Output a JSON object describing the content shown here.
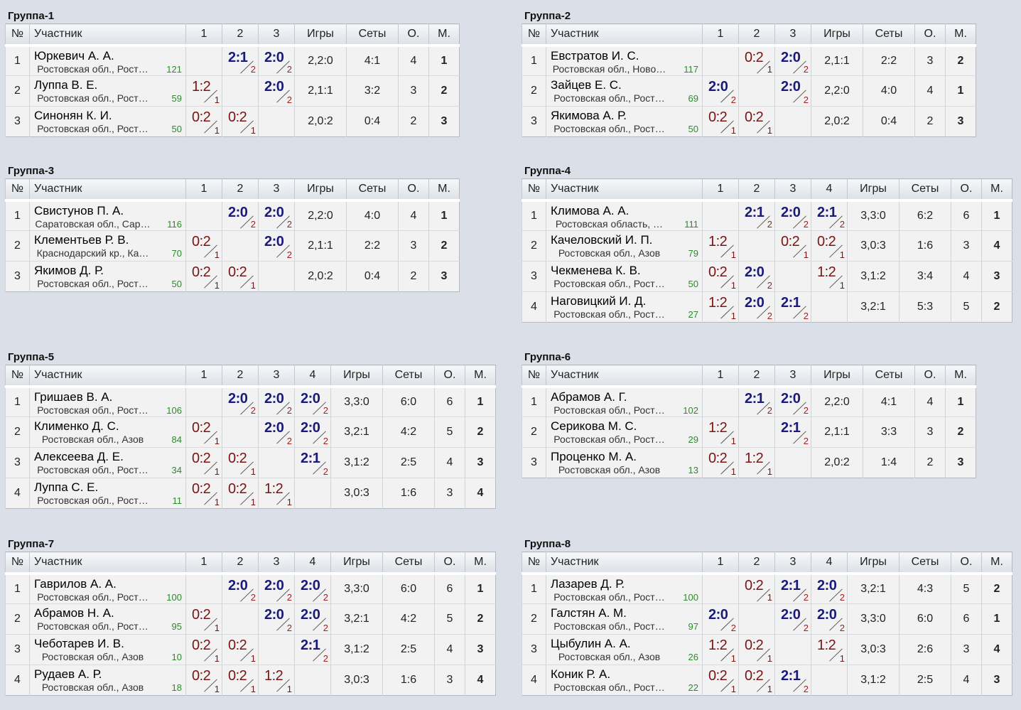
{
  "header_labels": {
    "num": "№",
    "participant": "Участник",
    "games": "Игры",
    "sets": "Сеты",
    "points": "О.",
    "place": "М."
  },
  "colors": {
    "background": "#dbe0e8",
    "win": "#1a1a7a",
    "loss": "#7a1414",
    "rating": "#2a8a2a",
    "place": "#1a237e"
  },
  "groups": [
    {
      "title": "Группа-1",
      "cols": [
        "1",
        "2",
        "3"
      ],
      "rows": [
        {
          "n": "1",
          "name": "Юркевич А. А.",
          "region": "Ростовская обл., Рост…",
          "rating": "121",
          "cells": [
            null,
            {
              "s": "2:1",
              "t": "2",
              "w": true
            },
            {
              "s": "2:0",
              "t": "2",
              "w": true
            }
          ],
          "games": "2,2:0",
          "sets": "4:1",
          "points": "4",
          "place": "1"
        },
        {
          "n": "2",
          "name": "Луппа В. Е.",
          "region": "Ростовская обл., Рост…",
          "rating": "59",
          "cells": [
            {
              "s": "1:2",
              "t": "1",
              "w": false
            },
            null,
            {
              "s": "2:0",
              "t": "2",
              "w": true
            }
          ],
          "games": "2,1:1",
          "sets": "3:2",
          "points": "3",
          "place": "2"
        },
        {
          "n": "3",
          "name": "Синонян К. И.",
          "region": "Ростовская обл., Рост…",
          "rating": "50",
          "cells": [
            {
              "s": "0:2",
              "t": "1",
              "w": false
            },
            {
              "s": "0:2",
              "t": "1",
              "w": false
            },
            null
          ],
          "games": "2,0:2",
          "sets": "0:4",
          "points": "2",
          "place": "3"
        }
      ]
    },
    {
      "title": "Группа-2",
      "cols": [
        "1",
        "2",
        "3"
      ],
      "rows": [
        {
          "n": "1",
          "name": "Евстратов И. С.",
          "region": "Ростовская обл., Ново…",
          "rating": "117",
          "cells": [
            null,
            {
              "s": "0:2",
              "t": "1",
              "w": false
            },
            {
              "s": "2:0",
              "t": "2",
              "w": true
            }
          ],
          "games": "2,1:1",
          "sets": "2:2",
          "points": "3",
          "place": "2"
        },
        {
          "n": "2",
          "name": "Зайцев Е. С.",
          "region": "Ростовская обл., Рост…",
          "rating": "69",
          "cells": [
            {
              "s": "2:0",
              "t": "2",
              "w": true
            },
            null,
            {
              "s": "2:0",
              "t": "2",
              "w": true
            }
          ],
          "games": "2,2:0",
          "sets": "4:0",
          "points": "4",
          "place": "1"
        },
        {
          "n": "3",
          "name": "Якимова А. Р.",
          "region": "Ростовская обл., Рост…",
          "rating": "50",
          "cells": [
            {
              "s": "0:2",
              "t": "1",
              "w": false
            },
            {
              "s": "0:2",
              "t": "1",
              "w": false
            },
            null
          ],
          "games": "2,0:2",
          "sets": "0:4",
          "points": "2",
          "place": "3"
        }
      ]
    },
    {
      "title": "Группа-3",
      "cols": [
        "1",
        "2",
        "3"
      ],
      "rows": [
        {
          "n": "1",
          "name": "Свистунов П. А.",
          "region": "Саратовская обл., Сар…",
          "rating": "116",
          "cells": [
            null,
            {
              "s": "2:0",
              "t": "2",
              "w": true
            },
            {
              "s": "2:0",
              "t": "2",
              "w": true
            }
          ],
          "games": "2,2:0",
          "sets": "4:0",
          "points": "4",
          "place": "1"
        },
        {
          "n": "2",
          "name": "Клементьев Р. В.",
          "region": "Краснодарский кр., Ка…",
          "rating": "70",
          "cells": [
            {
              "s": "0:2",
              "t": "1",
              "w": false
            },
            null,
            {
              "s": "2:0",
              "t": "2",
              "w": true
            }
          ],
          "games": "2,1:1",
          "sets": "2:2",
          "points": "3",
          "place": "2"
        },
        {
          "n": "3",
          "name": "Якимов Д. Р.",
          "region": "Ростовская обл., Рост…",
          "rating": "50",
          "cells": [
            {
              "s": "0:2",
              "t": "1",
              "w": false
            },
            {
              "s": "0:2",
              "t": "1",
              "w": false
            },
            null
          ],
          "games": "2,0:2",
          "sets": "0:4",
          "points": "2",
          "place": "3"
        }
      ]
    },
    {
      "title": "Группа-4",
      "cols": [
        "1",
        "2",
        "3",
        "4"
      ],
      "rows": [
        {
          "n": "1",
          "name": "Климова А. А.",
          "region": "Ростовская область, …",
          "rating": "111",
          "cells": [
            null,
            {
              "s": "2:1",
              "t": "2",
              "w": true
            },
            {
              "s": "2:0",
              "t": "2",
              "w": true
            },
            {
              "s": "2:1",
              "t": "2",
              "w": true
            }
          ],
          "games": "3,3:0",
          "sets": "6:2",
          "points": "6",
          "place": "1"
        },
        {
          "n": "2",
          "name": "Качеловский И. П.",
          "region": "Ростовская обл., Азов",
          "rating": "79",
          "cells": [
            {
              "s": "1:2",
              "t": "1",
              "w": false
            },
            null,
            {
              "s": "0:2",
              "t": "1",
              "w": false
            },
            {
              "s": "0:2",
              "t": "1",
              "w": false
            }
          ],
          "games": "3,0:3",
          "sets": "1:6",
          "points": "3",
          "place": "4"
        },
        {
          "n": "3",
          "name": "Чекменева К. В.",
          "region": "Ростовская обл., Рост…",
          "rating": "50",
          "cells": [
            {
              "s": "0:2",
              "t": "1",
              "w": false
            },
            {
              "s": "2:0",
              "t": "2",
              "w": true
            },
            null,
            {
              "s": "1:2",
              "t": "1",
              "w": false
            }
          ],
          "games": "3,1:2",
          "sets": "3:4",
          "points": "4",
          "place": "3"
        },
        {
          "n": "4",
          "name": "Наговицкий И. Д.",
          "region": "Ростовская обл., Рост…",
          "rating": "27",
          "cells": [
            {
              "s": "1:2",
              "t": "1",
              "w": false
            },
            {
              "s": "2:0",
              "t": "2",
              "w": true
            },
            {
              "s": "2:1",
              "t": "2",
              "w": true
            },
            null
          ],
          "games": "3,2:1",
          "sets": "5:3",
          "points": "5",
          "place": "2"
        }
      ]
    },
    {
      "title": "Группа-5",
      "cols": [
        "1",
        "2",
        "3",
        "4"
      ],
      "rows": [
        {
          "n": "1",
          "name": "Гришаев В. А.",
          "region": "Ростовская обл., Рост…",
          "rating": "106",
          "cells": [
            null,
            {
              "s": "2:0",
              "t": "2",
              "w": true
            },
            {
              "s": "2:0",
              "t": "2",
              "w": true
            },
            {
              "s": "2:0",
              "t": "2",
              "w": true
            }
          ],
          "games": "3,3:0",
          "sets": "6:0",
          "points": "6",
          "place": "1"
        },
        {
          "n": "2",
          "name": "Клименко Д. С.",
          "region": "Ростовская обл., Азов",
          "rating": "84",
          "cells": [
            {
              "s": "0:2",
              "t": "1",
              "w": false
            },
            null,
            {
              "s": "2:0",
              "t": "2",
              "w": true
            },
            {
              "s": "2:0",
              "t": "2",
              "w": true
            }
          ],
          "games": "3,2:1",
          "sets": "4:2",
          "points": "5",
          "place": "2"
        },
        {
          "n": "3",
          "name": "Алексеева Д. Е.",
          "region": "Ростовская обл., Рост…",
          "rating": "34",
          "cells": [
            {
              "s": "0:2",
              "t": "1",
              "w": false
            },
            {
              "s": "0:2",
              "t": "1",
              "w": false
            },
            null,
            {
              "s": "2:1",
              "t": "2",
              "w": true
            }
          ],
          "games": "3,1:2",
          "sets": "2:5",
          "points": "4",
          "place": "3"
        },
        {
          "n": "4",
          "name": "Луппа С. Е.",
          "region": "Ростовская обл., Рост…",
          "rating": "11",
          "cells": [
            {
              "s": "0:2",
              "t": "1",
              "w": false
            },
            {
              "s": "0:2",
              "t": "1",
              "w": false
            },
            {
              "s": "1:2",
              "t": "1",
              "w": false
            },
            null
          ],
          "games": "3,0:3",
          "sets": "1:6",
          "points": "3",
          "place": "4"
        }
      ]
    },
    {
      "title": "Группа-6",
      "cols": [
        "1",
        "2",
        "3"
      ],
      "rows": [
        {
          "n": "1",
          "name": "Абрамов А. Г.",
          "region": "Ростовская обл., Рост…",
          "rating": "102",
          "cells": [
            null,
            {
              "s": "2:1",
              "t": "2",
              "w": true
            },
            {
              "s": "2:0",
              "t": "2",
              "w": true
            }
          ],
          "games": "2,2:0",
          "sets": "4:1",
          "points": "4",
          "place": "1"
        },
        {
          "n": "2",
          "name": "Серикова М. С.",
          "region": "Ростовская обл., Рост…",
          "rating": "29",
          "cells": [
            {
              "s": "1:2",
              "t": "1",
              "w": false
            },
            null,
            {
              "s": "2:1",
              "t": "2",
              "w": true
            }
          ],
          "games": "2,1:1",
          "sets": "3:3",
          "points": "3",
          "place": "2"
        },
        {
          "n": "3",
          "name": "Проценко М. А.",
          "region": "Ростовская обл., Азов",
          "rating": "13",
          "cells": [
            {
              "s": "0:2",
              "t": "1",
              "w": false
            },
            {
              "s": "1:2",
              "t": "1",
              "w": false
            },
            null
          ],
          "games": "2,0:2",
          "sets": "1:4",
          "points": "2",
          "place": "3"
        }
      ]
    },
    {
      "title": "Группа-7",
      "cols": [
        "1",
        "2",
        "3",
        "4"
      ],
      "rows": [
        {
          "n": "1",
          "name": "Гаврилов А. А.",
          "region": "Ростовская обл., Рост…",
          "rating": "100",
          "cells": [
            null,
            {
              "s": "2:0",
              "t": "2",
              "w": true
            },
            {
              "s": "2:0",
              "t": "2",
              "w": true
            },
            {
              "s": "2:0",
              "t": "2",
              "w": true
            }
          ],
          "games": "3,3:0",
          "sets": "6:0",
          "points": "6",
          "place": "1"
        },
        {
          "n": "2",
          "name": "Абрамов Н. А.",
          "region": "Ростовская обл., Рост…",
          "rating": "95",
          "cells": [
            {
              "s": "0:2",
              "t": "1",
              "w": false
            },
            null,
            {
              "s": "2:0",
              "t": "2",
              "w": true
            },
            {
              "s": "2:0",
              "t": "2",
              "w": true
            }
          ],
          "games": "3,2:1",
          "sets": "4:2",
          "points": "5",
          "place": "2"
        },
        {
          "n": "3",
          "name": "Чеботарев И. В.",
          "region": "Ростовская обл., Азов",
          "rating": "10",
          "cells": [
            {
              "s": "0:2",
              "t": "1",
              "w": false
            },
            {
              "s": "0:2",
              "t": "1",
              "w": false
            },
            null,
            {
              "s": "2:1",
              "t": "2",
              "w": true
            }
          ],
          "games": "3,1:2",
          "sets": "2:5",
          "points": "4",
          "place": "3"
        },
        {
          "n": "4",
          "name": "Рудаев А. Р.",
          "region": "Ростовская обл., Азов",
          "rating": "18",
          "cells": [
            {
              "s": "0:2",
              "t": "1",
              "w": false
            },
            {
              "s": "0:2",
              "t": "1",
              "w": false
            },
            {
              "s": "1:2",
              "t": "1",
              "w": false
            },
            null
          ],
          "games": "3,0:3",
          "sets": "1:6",
          "points": "3",
          "place": "4"
        }
      ]
    },
    {
      "title": "Группа-8",
      "cols": [
        "1",
        "2",
        "3",
        "4"
      ],
      "rows": [
        {
          "n": "1",
          "name": "Лазарев Д. Р.",
          "region": "Ростовская обл., Рост…",
          "rating": "100",
          "cells": [
            null,
            {
              "s": "0:2",
              "t": "1",
              "w": false
            },
            {
              "s": "2:1",
              "t": "2",
              "w": true
            },
            {
              "s": "2:0",
              "t": "2",
              "w": true
            }
          ],
          "games": "3,2:1",
          "sets": "4:3",
          "points": "5",
          "place": "2"
        },
        {
          "n": "2",
          "name": "Галстян А. М.",
          "region": "Ростовская обл., Рост…",
          "rating": "97",
          "cells": [
            {
              "s": "2:0",
              "t": "2",
              "w": true
            },
            null,
            {
              "s": "2:0",
              "t": "2",
              "w": true
            },
            {
              "s": "2:0",
              "t": "2",
              "w": true
            }
          ],
          "games": "3,3:0",
          "sets": "6:0",
          "points": "6",
          "place": "1"
        },
        {
          "n": "3",
          "name": "Цыбулин А. А.",
          "region": "Ростовская обл., Азов",
          "rating": "26",
          "cells": [
            {
              "s": "1:2",
              "t": "1",
              "w": false
            },
            {
              "s": "0:2",
              "t": "1",
              "w": false
            },
            null,
            {
              "s": "1:2",
              "t": "1",
              "w": false
            }
          ],
          "games": "3,0:3",
          "sets": "2:6",
          "points": "3",
          "place": "4"
        },
        {
          "n": "4",
          "name": "Коник Р. А.",
          "region": "Ростовская обл., Рост…",
          "rating": "22",
          "cells": [
            {
              "s": "0:2",
              "t": "1",
              "w": false
            },
            {
              "s": "0:2",
              "t": "1",
              "w": false
            },
            {
              "s": "2:1",
              "t": "2",
              "w": true
            },
            null
          ],
          "games": "3,1:2",
          "sets": "2:5",
          "points": "4",
          "place": "3"
        }
      ]
    }
  ]
}
